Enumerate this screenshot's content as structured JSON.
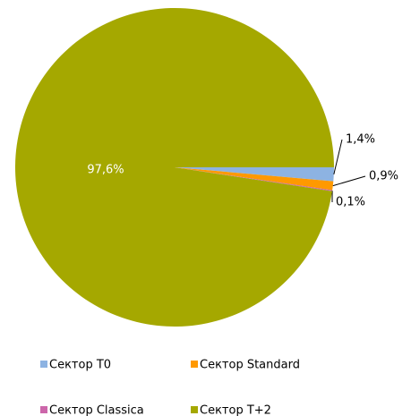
{
  "chart_data": {
    "type": "pie",
    "categories": [
      "Сектор T0",
      "Сектор Standard",
      "Сектор Classica",
      "Сектор T+2"
    ],
    "values": [
      1.4,
      0.9,
      0.1,
      97.6
    ],
    "value_labels": [
      "1,4%",
      "0,9%",
      "0,1%",
      "97,6%"
    ],
    "colors": [
      "#8db3e2",
      "#ff9900",
      "#cc66aa",
      "#a5a800"
    ],
    "legend": "bottom"
  }
}
